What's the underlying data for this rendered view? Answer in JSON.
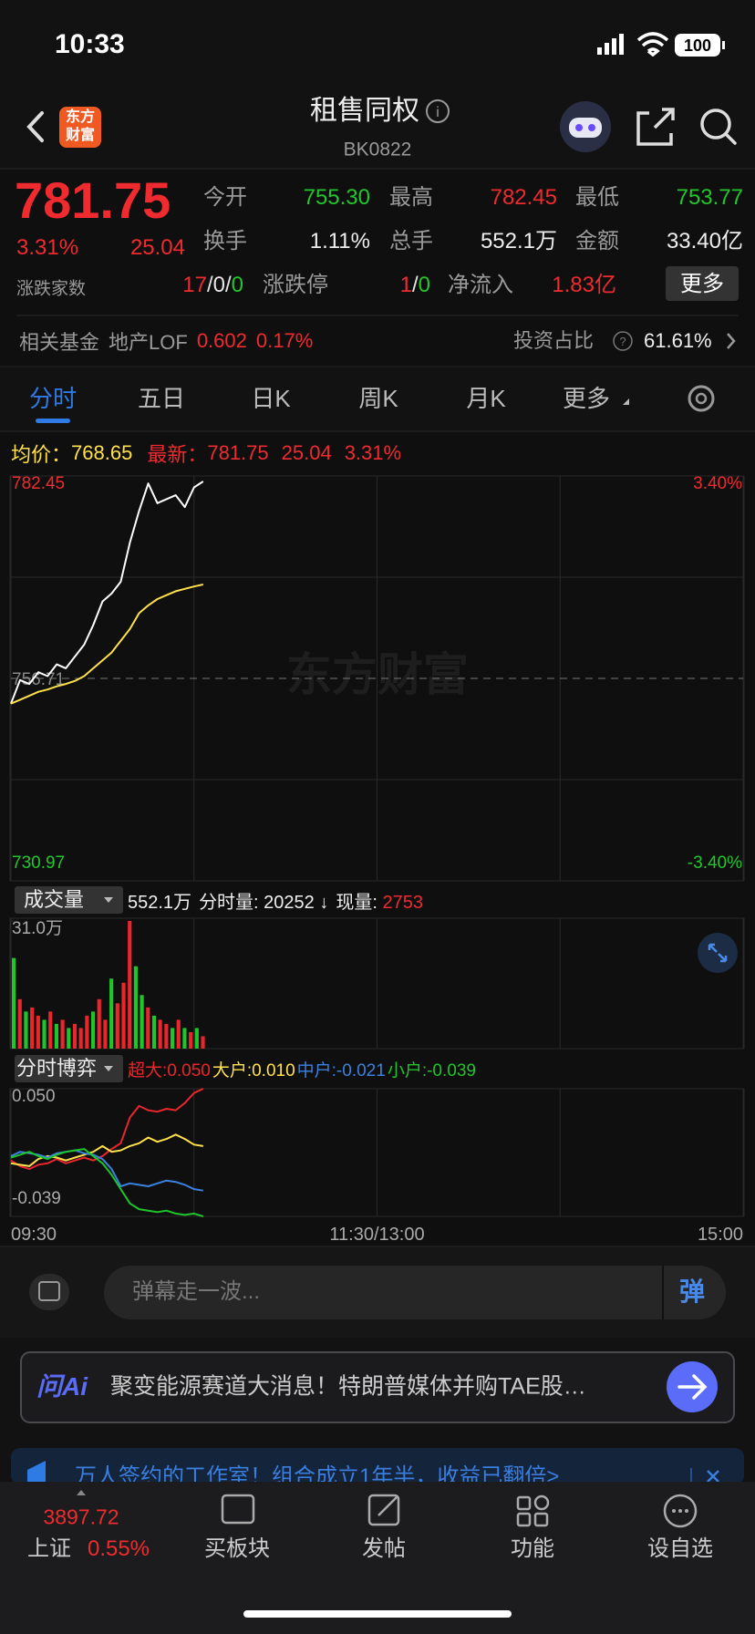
{
  "status_bar": {
    "time": "10:33",
    "battery": "100"
  },
  "header": {
    "logo": [
      "东方",
      "财富"
    ],
    "title": "租售同权",
    "code": "BK0822"
  },
  "quote": {
    "price": "781.75",
    "change_pct": "3.31%",
    "change": "25.04",
    "stats": [
      [
        "今开",
        "755.30"
      ],
      [
        "最高",
        "782.45"
      ],
      [
        "最低",
        "753.77"
      ],
      [
        "换手",
        "1.11%"
      ],
      [
        "总手",
        "552.1万"
      ],
      [
        "金额",
        "33.40亿"
      ]
    ],
    "breadth_label": "涨跌家数",
    "breadth": [
      "17",
      "0",
      "0"
    ],
    "limit_label": "涨跌停",
    "limit": [
      "1",
      "0"
    ],
    "inflow_label": "净流入",
    "inflow": "1.83亿",
    "more": "更多"
  },
  "fund": {
    "label": "相关基金",
    "name": "地产LOF",
    "price": "0.602",
    "pct": "0.17%",
    "ratio_label": "投资占比",
    "ratio": "61.61%"
  },
  "tabs": [
    "分时",
    "五日",
    "日K",
    "周K",
    "月K",
    "更多"
  ],
  "info": {
    "avg_label": "均价：",
    "avg": "768.65",
    "last_label": "最新：",
    "last": "781.75",
    "change": "25.04",
    "pct": "3.31%"
  },
  "watermark": "东方财富",
  "chart_data": [
    {
      "type": "line",
      "ylim": [
        730.97,
        782.45
      ],
      "yticks": [
        782.45,
        {
          "value": 769.58,
          "label": null
        },
        {
          "value": 756.71,
          "label": "756.71",
          "dashed": true
        },
        {
          "value": 743.84,
          "label": null
        },
        730.97
      ],
      "y2lim": [
        -3.4,
        3.4
      ],
      "y2ticks": [
        {
          "value": 3.4,
          "label": "3.40%"
        },
        {
          "value": -3.4,
          "label": "-3.40%"
        }
      ],
      "xlim": [
        0,
        240
      ],
      "x": [
        0,
        3,
        6,
        9,
        12,
        15,
        18,
        21,
        24,
        27,
        30,
        33,
        36,
        39,
        42,
        45,
        48,
        51,
        54,
        57,
        60,
        63
      ],
      "series": [
        {
          "color": "#ffffff",
          "values": [
            753.5,
            756.5,
            756,
            757.5,
            757,
            758.5,
            758,
            759.5,
            761,
            763.5,
            766.5,
            767.5,
            769,
            774,
            778,
            781.5,
            779,
            779.5,
            780,
            778.5,
            781,
            781.75
          ]
        },
        {
          "color": "#ffe14b",
          "values": [
            753.5,
            754,
            754.5,
            755,
            755.3,
            755.7,
            756,
            756.4,
            757,
            758,
            759,
            760,
            761.5,
            763,
            765,
            766,
            766.8,
            767.3,
            767.8,
            768.1,
            768.4,
            768.65
          ]
        }
      ]
    },
    {
      "type": "bar",
      "title": "成交量",
      "texts": [
        "552.1万",
        "分时量: 20252 ↓",
        "现量: "
      ],
      "latest": "2753",
      "ylim": [
        0,
        31
      ],
      "yticks": [
        {
          "value": 31,
          "label": "31.0万"
        }
      ],
      "xlim": [
        0,
        240
      ],
      "x": [
        0,
        2,
        4,
        6,
        8,
        10,
        12,
        14,
        16,
        18,
        20,
        22,
        24,
        26,
        28,
        30,
        32,
        34,
        36,
        38,
        40,
        42,
        44,
        46,
        48,
        50,
        52,
        54,
        56,
        58,
        60,
        62
      ],
      "values": [
        22,
        12,
        9,
        10,
        8,
        7,
        9,
        6,
        7,
        5,
        6,
        5,
        8,
        9,
        12,
        7,
        17,
        11,
        16,
        31,
        20,
        13,
        10,
        8,
        7,
        6,
        5,
        7,
        5,
        4,
        5,
        3
      ],
      "colors": [
        "#1fc52a",
        "#e8262c",
        "#1fc52a",
        "#e8262c",
        "#e8262c",
        "#1fc52a",
        "#e8262c",
        "#1fc52a",
        "#e8262c",
        "#1fc52a",
        "#e8262c",
        "#e8262c",
        "#e8262c",
        "#1fc52a",
        "#e8262c",
        "#e8262c",
        "#1fc52a",
        "#e8262c",
        "#e8262c",
        "#e8262c",
        "#1fc52a",
        "#1fc52a",
        "#e8262c",
        "#1fc52a",
        "#e8262c",
        "#e8262c",
        "#1fc52a",
        "#e8262c",
        "#1fc52a",
        "#e8262c",
        "#1fc52a",
        "#e8262c"
      ]
    },
    {
      "type": "line",
      "title": "分时博弈",
      "ylim": [
        -0.039,
        0.05
      ],
      "yticks": [
        {
          "value": 0.05,
          "label": "0.050"
        },
        {
          "value": -0.039,
          "label": "-0.039"
        }
      ],
      "xlim": [
        0,
        240
      ],
      "xticks": [
        {
          "value": 0,
          "label": "09:30"
        },
        {
          "value": 60,
          "label": null
        },
        {
          "value": 120,
          "label": "11:30/13:00"
        },
        {
          "value": 180,
          "label": null
        },
        {
          "value": 240,
          "label": "15:00"
        }
      ],
      "x": [
        0,
        3,
        6,
        9,
        12,
        15,
        18,
        21,
        24,
        27,
        30,
        33,
        36,
        39,
        42,
        45,
        48,
        51,
        54,
        57,
        60,
        63
      ],
      "series": [
        {
          "legend": "超大:0.050",
          "color": "#e8262c",
          "values": [
            0,
            -0.004,
            -0.006,
            -0.003,
            -0.002,
            0.001,
            -0.002,
            0,
            0.002,
            0,
            0.003,
            0.008,
            0.012,
            0.03,
            0.038,
            0.035,
            0.034,
            0.036,
            0.035,
            0.04,
            0.047,
            0.05
          ]
        },
        {
          "legend": "大户:0.010",
          "color": "#ffe14b",
          "values": [
            -0.002,
            -0.003,
            -0.004,
            0.001,
            0.003,
            0.002,
            0,
            0.002,
            0.004,
            0.006,
            0.01,
            0.006,
            0.007,
            0.01,
            0.012,
            0.016,
            0.013,
            0.015,
            0.018,
            0.015,
            0.011,
            0.01
          ]
        },
        {
          "legend": "中户:-0.021",
          "color": "#3b82e0",
          "values": [
            0.003,
            0.006,
            0.005,
            0.004,
            0.002,
            0.005,
            0.006,
            0.007,
            0.005,
            0.004,
            0.001,
            -0.006,
            -0.018,
            -0.016,
            -0.017,
            -0.018,
            -0.016,
            -0.014,
            -0.015,
            -0.017,
            -0.02,
            -0.021
          ]
        },
        {
          "legend": "小户:-0.039",
          "color": "#1fc52a",
          "values": [
            0.002,
            0.004,
            0.006,
            0.003,
            0.001,
            0.004,
            0.006,
            0.007,
            0.008,
            0.003,
            -0.002,
            -0.01,
            -0.02,
            -0.03,
            -0.034,
            -0.035,
            -0.036,
            -0.035,
            -0.037,
            -0.038,
            -0.037,
            -0.039
          ]
        }
      ]
    }
  ],
  "comment": {
    "placeholder": "弹幕走一波...",
    "button": "弹"
  },
  "ai": {
    "brand": "问Ai",
    "text": "聚变能源赛道大消息！特朗普媒体并购TAE股…"
  },
  "banner": {
    "text": "万人签约的工作室！组合成立1年半，收益已翻倍>"
  },
  "nav": {
    "index_value": "3897.72",
    "index_name": "上证",
    "index_pct": "0.55%",
    "items": [
      "买板块",
      "发帖",
      "功能",
      "设自选"
    ]
  }
}
